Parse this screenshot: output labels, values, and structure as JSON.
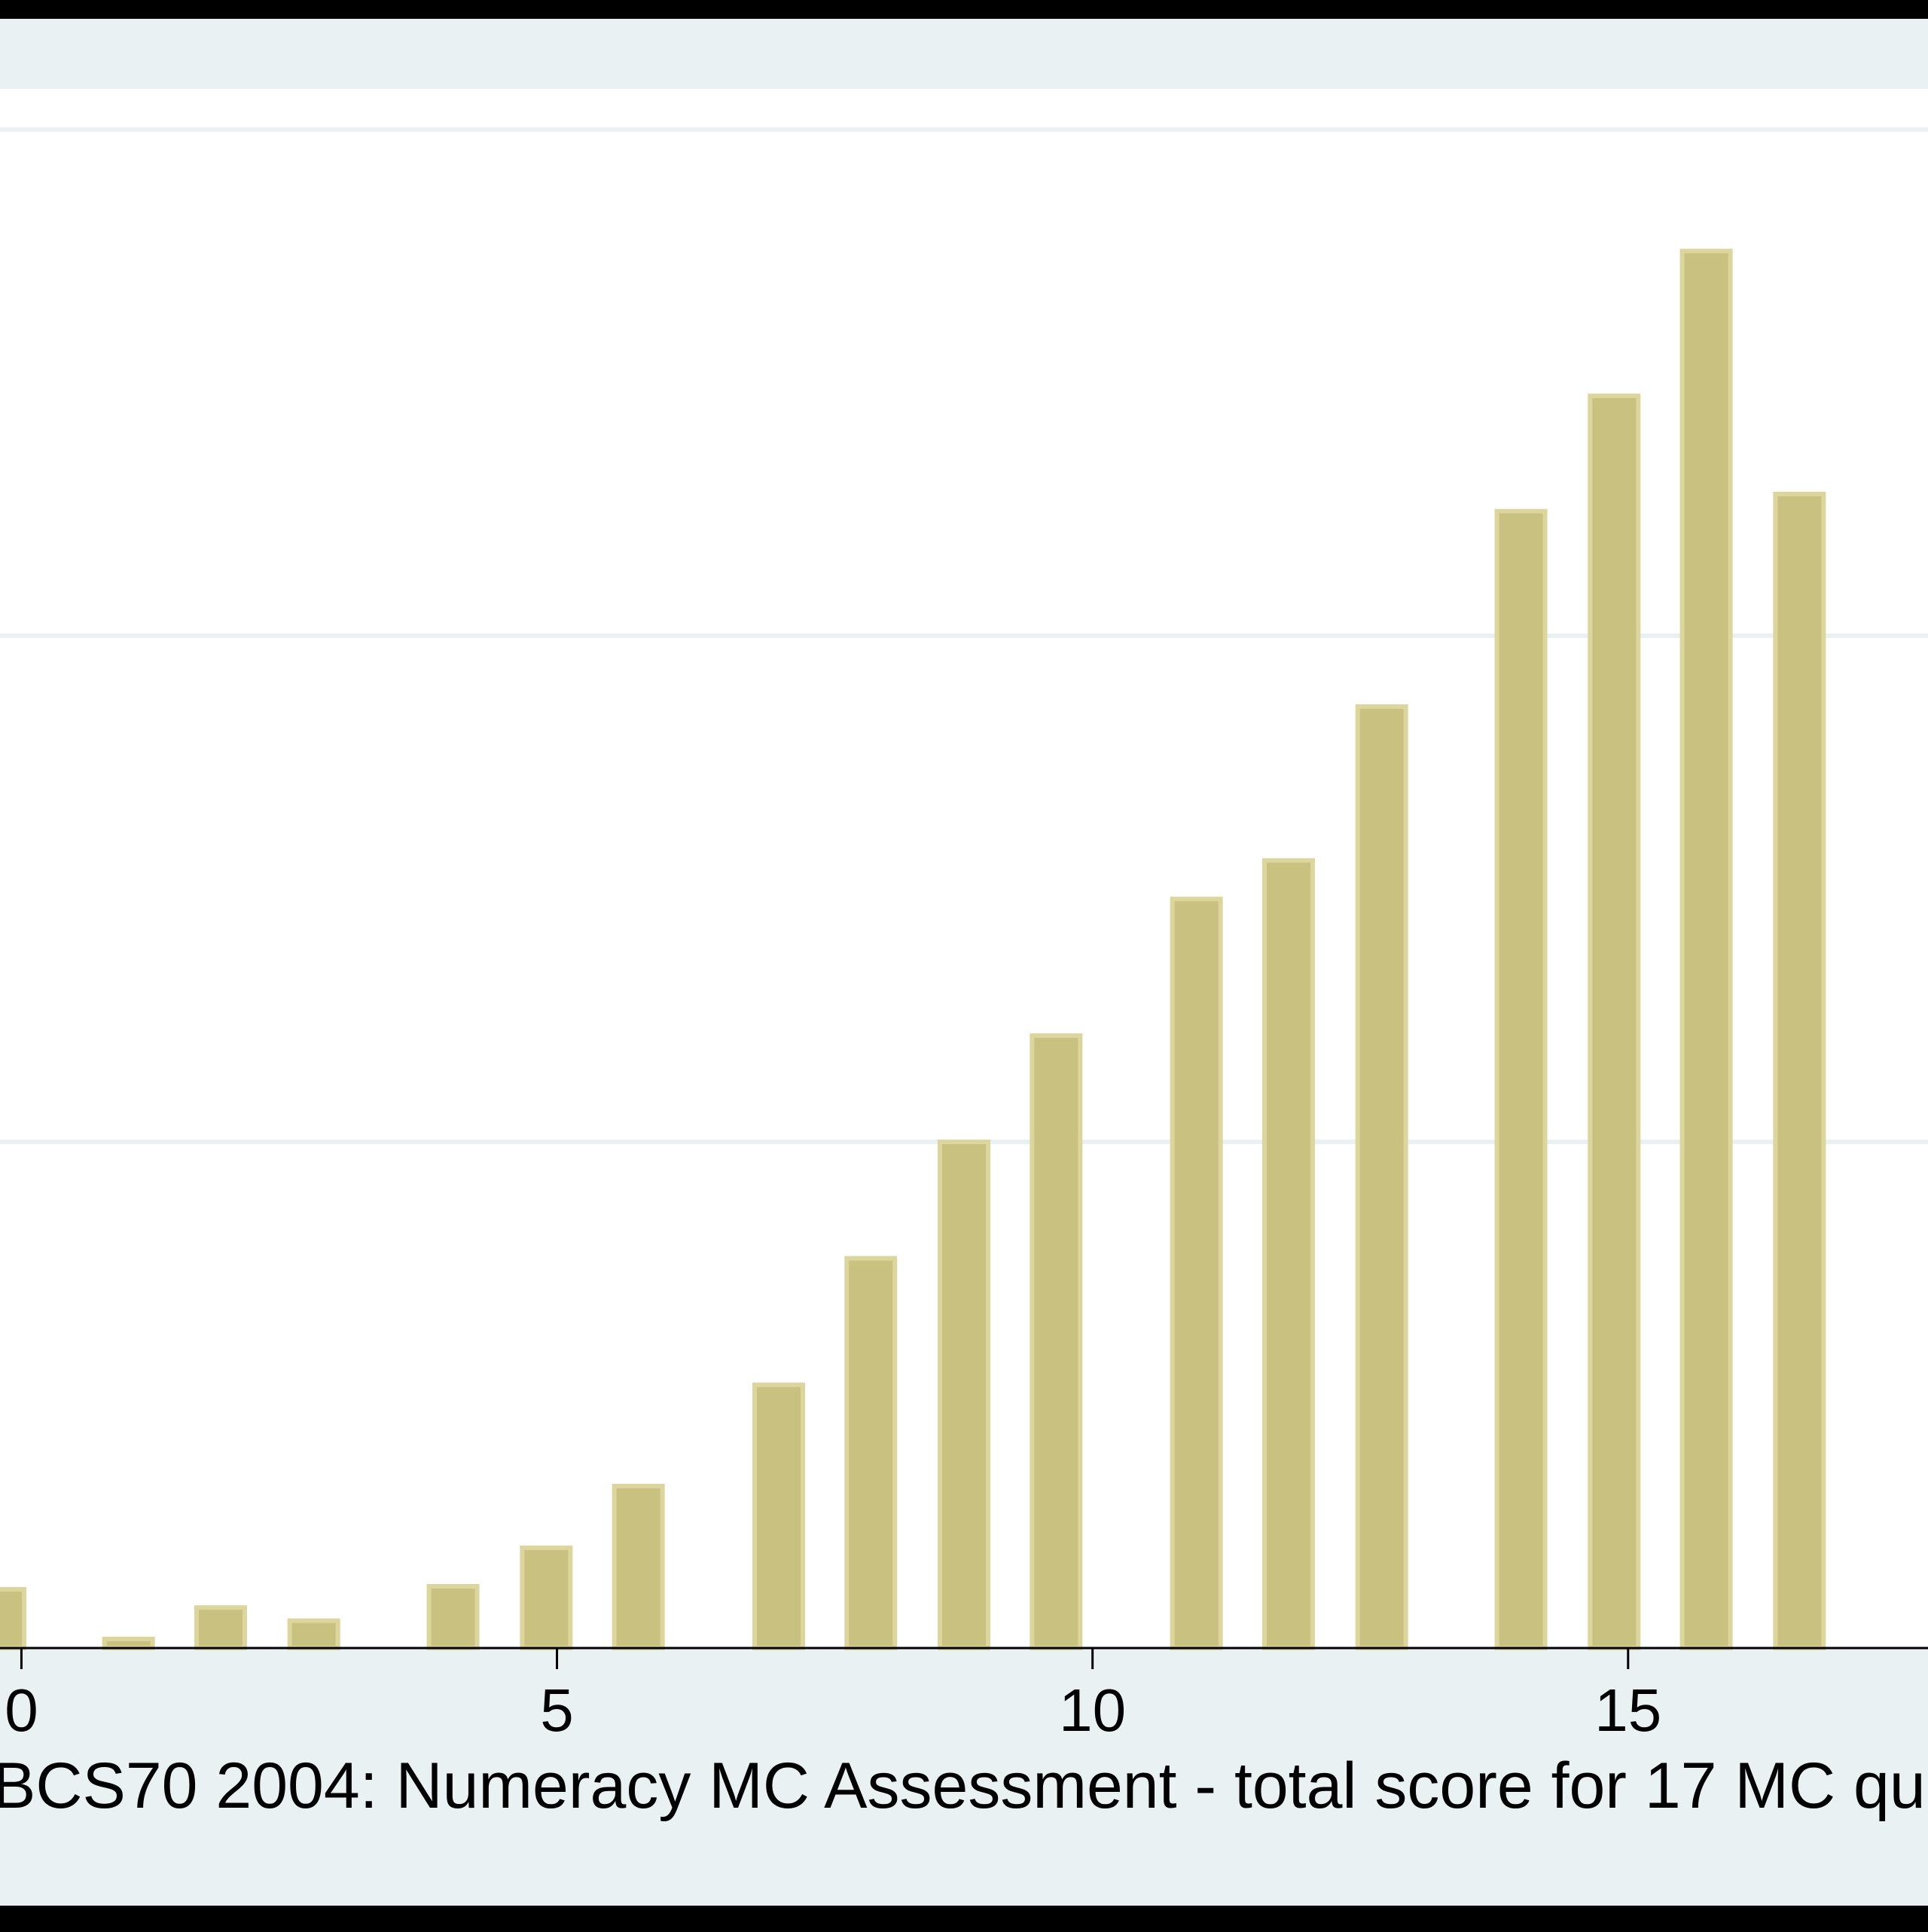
{
  "chart_data": {
    "type": "bar",
    "xlabel": "BCS70 2004: Numeracy MC Assessment - total score for 17 MC qu",
    "ylabel": "",
    "x_ticks": [
      0,
      5,
      10,
      15
    ],
    "x_tick_labels": [
      "0",
      "5",
      "10",
      "15"
    ],
    "xlim": [
      -0.2,
      17.8
    ],
    "ylim": [
      0,
      1.5
    ],
    "gridlines_y": [
      0.5,
      1.0,
      1.5
    ],
    "bar_width": 0.45,
    "x": [
      -0.2,
      1.0,
      1.86,
      2.73,
      4.03,
      4.9,
      5.76,
      7.07,
      7.93,
      8.8,
      9.66,
      10.97,
      11.83,
      12.7,
      14.0,
      14.87,
      15.73,
      16.6
    ],
    "values": [
      0.058,
      0.009,
      0.04,
      0.027,
      0.061,
      0.099,
      0.16,
      0.26,
      0.385,
      0.5,
      0.605,
      0.74,
      0.778,
      0.93,
      1.123,
      1.237,
      1.38,
      1.14
    ],
    "bar_color": "#C9C17F",
    "bar_edge_color": "#DCD59E",
    "plot_background": "#FFFFFF",
    "figure_background": "#EAF1F3",
    "grid": true
  }
}
